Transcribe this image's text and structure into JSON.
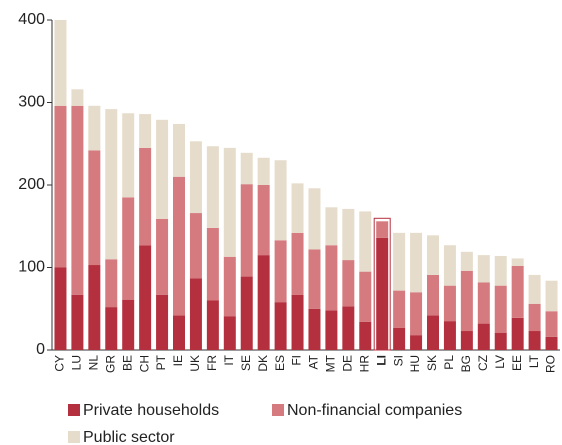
{
  "chart_data": {
    "type": "stacked_bar",
    "categories": [
      "CY",
      "LU",
      "NL",
      "GR",
      "BE",
      "CH",
      "PT",
      "IE",
      "UK",
      "FR",
      "IT",
      "SE",
      "DK",
      "ES",
      "FI",
      "AT",
      "MT",
      "DE",
      "HR",
      "LI",
      "SI",
      "HU",
      "SK",
      "PL",
      "BG",
      "CZ",
      "LV",
      "EE",
      "LT",
      "RO"
    ],
    "series": [
      {
        "name": "Private households",
        "color": "#b5303f",
        "values": [
          100,
          67,
          103,
          52,
          61,
          127,
          67,
          42,
          87,
          60,
          41,
          89,
          115,
          58,
          67,
          50,
          48,
          53,
          34,
          136,
          27,
          18,
          42,
          35,
          23,
          32,
          21,
          39,
          23,
          16
        ]
      },
      {
        "name": "Non-financial companies",
        "color": "#d57a7f",
        "values": [
          196,
          229,
          139,
          58,
          124,
          118,
          92,
          168,
          79,
          88,
          72,
          112,
          85,
          75,
          75,
          72,
          79,
          56,
          61,
          20,
          45,
          52,
          49,
          43,
          73,
          50,
          57,
          63,
          33,
          31
        ]
      },
      {
        "name": "Public sector",
        "color": "#e6dccb",
        "values": [
          104,
          20,
          54,
          182,
          102,
          41,
          120,
          64,
          87,
          99,
          132,
          38,
          33,
          97,
          60,
          74,
          46,
          62,
          73,
          0,
          70,
          72,
          48,
          49,
          23,
          33,
          36,
          9,
          35,
          37
        ]
      }
    ],
    "highlight": "LI",
    "highlight_color": "#b5303f",
    "ylim": [
      0,
      400
    ],
    "yticks": [
      0,
      100,
      200,
      300,
      400
    ],
    "grid": false
  }
}
